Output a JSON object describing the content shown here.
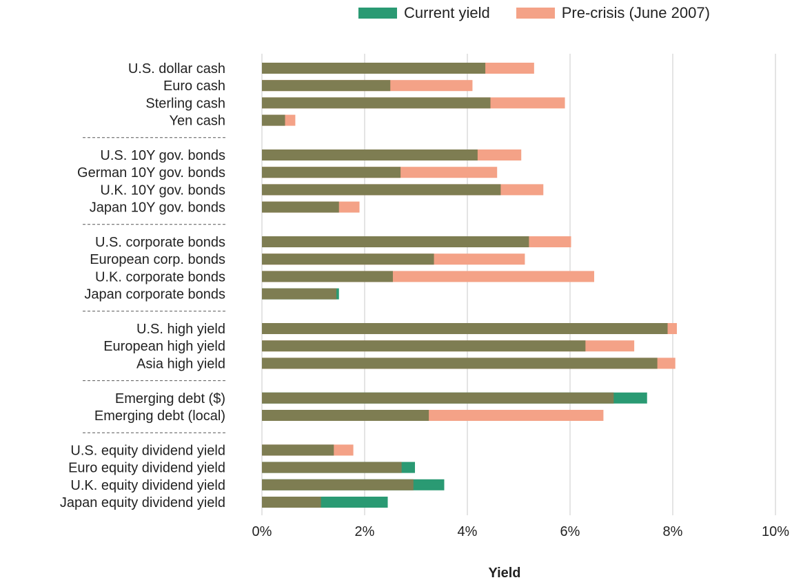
{
  "colors": {
    "current": "#2a9a73",
    "precrisis": "#f4a287",
    "overlap": "#7e7d52",
    "grid": "#c8c8c8",
    "separator": "#555555"
  },
  "legend": {
    "current_label": "Current yield",
    "precrisis_label": "Pre-crisis (June 2007)"
  },
  "chart_data": {
    "type": "bar",
    "orientation": "horizontal",
    "xlabel": "Yield",
    "ylabel": "",
    "xlim": [
      0,
      10
    ],
    "x_ticks": [
      "0%",
      "2%",
      "4%",
      "6%",
      "8%",
      "10%"
    ],
    "grid": true,
    "legend_position": "top-right",
    "groups": [
      {
        "categories": [
          "U.S. dollar cash",
          "Euro cash",
          "Sterling cash",
          "Yen cash"
        ]
      },
      {
        "categories": [
          "U.S. 10Y gov. bonds",
          "German 10Y gov. bonds",
          "U.K. 10Y gov. bonds",
          "Japan 10Y gov. bonds"
        ]
      },
      {
        "categories": [
          "U.S. corporate bonds",
          "European corp. bonds",
          "U.K. corporate bonds",
          "Japan corporate bonds"
        ]
      },
      {
        "categories": [
          "U.S. high yield",
          "European high yield",
          "Asia high yield"
        ]
      },
      {
        "categories": [
          "Emerging debt ($)",
          "Emerging debt (local)"
        ]
      },
      {
        "categories": [
          "U.S. equity dividend yield",
          "Euro equity dividend yield",
          "U.K. equity dividend yield",
          "Japan equity dividend yield"
        ]
      }
    ],
    "categories": [
      "U.S. dollar cash",
      "Euro cash",
      "Sterling cash",
      "Yen cash",
      "U.S. 10Y gov. bonds",
      "German 10Y gov. bonds",
      "U.K. 10Y gov. bonds",
      "Japan 10Y gov. bonds",
      "U.S. corporate bonds",
      "European corp. bonds",
      "U.K. corporate bonds",
      "Japan corporate bonds",
      "U.S. high yield",
      "European high yield",
      "Asia high yield",
      "Emerging debt ($)",
      "Emerging debt (local)",
      "U.S. equity dividend yield",
      "Euro equity dividend yield",
      "U.K. equity dividend yield",
      "Japan equity dividend yield"
    ],
    "series": [
      {
        "name": "Current yield",
        "values": [
          4.35,
          2.5,
          4.45,
          0.45,
          4.2,
          2.7,
          4.65,
          1.5,
          5.2,
          3.35,
          2.55,
          1.5,
          7.9,
          6.3,
          7.7,
          7.5,
          3.25,
          1.4,
          2.98,
          3.55,
          2.45
        ]
      },
      {
        "name": "Pre-crisis (June 2007)",
        "values": [
          5.3,
          4.1,
          5.9,
          0.65,
          5.05,
          4.58,
          5.48,
          1.9,
          6.02,
          5.12,
          6.47,
          1.45,
          8.08,
          7.25,
          8.05,
          6.85,
          6.65,
          1.78,
          2.72,
          2.95,
          1.15
        ]
      }
    ]
  }
}
